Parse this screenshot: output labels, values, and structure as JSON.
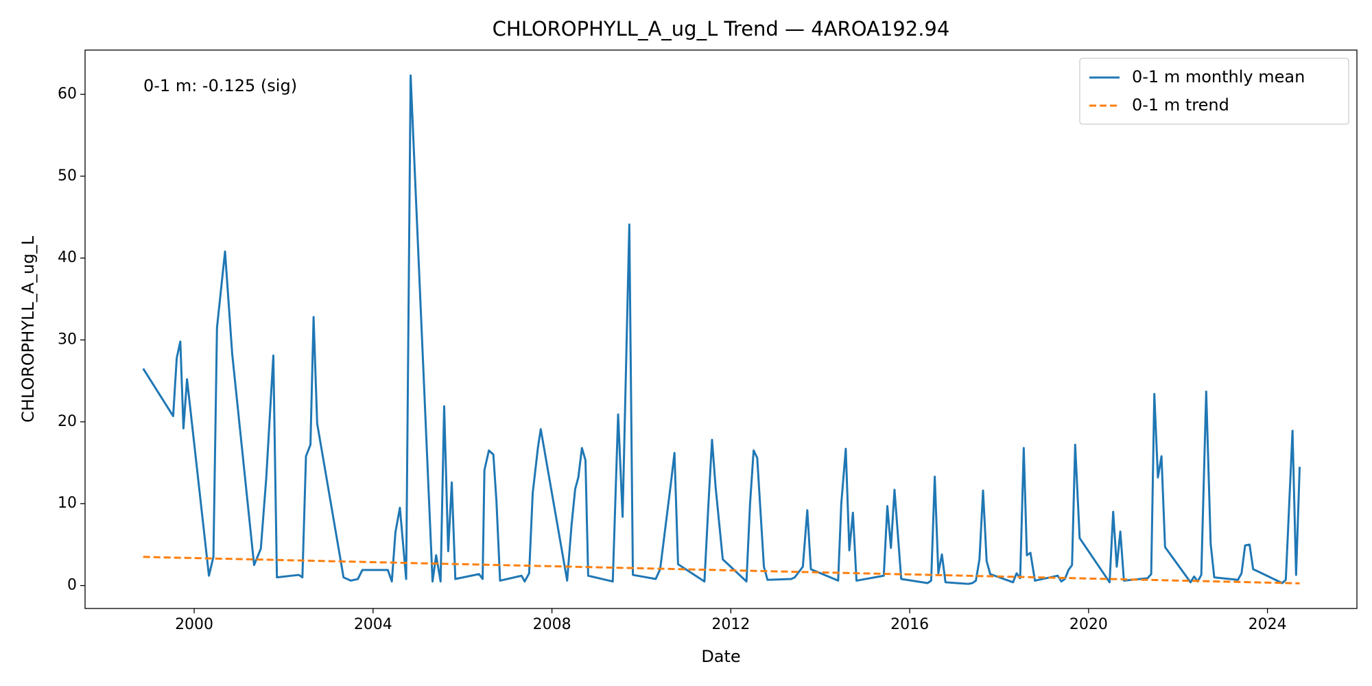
{
  "chart_data": {
    "type": "line",
    "title": "CHLOROPHYLL_A_ug_L Trend — 4AROA192.94",
    "x_label": "Date",
    "y_label": "CHLOROPHYLL_A_ug_L",
    "annotations": [
      "0-1 m: -0.125 (sig)"
    ],
    "xlim": [
      1997.56,
      2026.0
    ],
    "xticks": [
      2000,
      2004,
      2008,
      2012,
      2016,
      2020,
      2024
    ],
    "ylim": [
      -2.8,
      65.4
    ],
    "yticks": [
      0,
      10,
      20,
      30,
      40,
      50,
      60
    ],
    "grid": false,
    "legend": "upper right",
    "series": [
      {
        "name": "0-1 m monthly mean",
        "color": "#1f77b4",
        "linestyle": "solid",
        "x": [
          1998.86,
          1999.53,
          1999.61,
          1999.69,
          1999.76,
          1999.84,
          2000.33,
          2000.43,
          2000.51,
          2000.69,
          2000.85,
          2001.34,
          2001.49,
          2001.61,
          2001.77,
          2001.85,
          2002.34,
          2002.42,
          2002.5,
          2002.6,
          2002.67,
          2002.75,
          2003.34,
          2003.5,
          2003.66,
          2003.76,
          2004.33,
          2004.42,
          2004.5,
          2004.6,
          2004.74,
          2004.84,
          2005.33,
          2005.41,
          2005.51,
          2005.59,
          2005.68,
          2005.76,
          2005.84,
          2006.37,
          2006.45,
          2006.49,
          2006.59,
          2006.69,
          2006.76,
          2006.84,
          2007.32,
          2007.39,
          2007.49,
          2007.57,
          2007.69,
          2007.75,
          2008.34,
          2008.44,
          2008.52,
          2008.59,
          2008.67,
          2008.75,
          2008.81,
          2009.36,
          2009.48,
          2009.58,
          2009.73,
          2009.81,
          2010.32,
          2010.42,
          2010.66,
          2010.74,
          2010.82,
          2011.41,
          2011.5,
          2011.58,
          2011.66,
          2011.82,
          2012.35,
          2012.43,
          2012.51,
          2012.59,
          2012.74,
          2012.82,
          2013.35,
          2013.43,
          2013.61,
          2013.71,
          2013.79,
          2014.4,
          2014.47,
          2014.57,
          2014.65,
          2014.73,
          2014.81,
          2015.42,
          2015.5,
          2015.58,
          2015.66,
          2015.81,
          2016.4,
          2016.48,
          2016.56,
          2016.64,
          2016.72,
          2016.8,
          2017.31,
          2017.4,
          2017.48,
          2017.56,
          2017.64,
          2017.72,
          2017.8,
          2018.31,
          2018.39,
          2018.47,
          2018.55,
          2018.62,
          2018.7,
          2018.8,
          2019.31,
          2019.39,
          2019.47,
          2019.55,
          2019.63,
          2019.7,
          2019.8,
          2020.47,
          2020.55,
          2020.63,
          2020.71,
          2020.79,
          2021.32,
          2021.4,
          2021.47,
          2021.55,
          2021.63,
          2021.71,
          2022.28,
          2022.36,
          2022.44,
          2022.52,
          2022.63,
          2022.73,
          2022.81,
          2023.34,
          2023.42,
          2023.5,
          2023.6,
          2023.68,
          2023.76,
          2024.33,
          2024.41,
          2024.56,
          2024.64,
          2024.72
        ],
        "values": [
          26.5,
          20.7,
          27.8,
          29.8,
          19.2,
          25.2,
          1.2,
          3.5,
          31.5,
          40.8,
          28.3,
          2.5,
          4.5,
          13,
          28.1,
          1.0,
          1.3,
          1.0,
          15.8,
          17.2,
          32.8,
          19.8,
          1.0,
          0.6,
          0.8,
          1.9,
          1.9,
          0.5,
          6.5,
          9.5,
          0.8,
          62.3,
          0.5,
          3.7,
          0.5,
          21.9,
          4.2,
          12.6,
          0.8,
          1.4,
          0.8,
          14.1,
          16.5,
          16.0,
          10.2,
          0.6,
          1.2,
          0.5,
          1.5,
          11.3,
          17.0,
          19.1,
          0.6,
          7.5,
          11.8,
          13.2,
          16.8,
          15.3,
          1.2,
          0.5,
          20.9,
          8.4,
          44.1,
          1.3,
          0.8,
          2.0,
          12.5,
          16.2,
          2.6,
          0.5,
          10.0,
          17.8,
          12.0,
          3.2,
          0.5,
          10.0,
          16.5,
          15.6,
          2.3,
          0.7,
          0.8,
          1.0,
          2.3,
          9.2,
          2.0,
          0.6,
          10,
          16.7,
          4.3,
          8.9,
          0.6,
          1.2,
          9.7,
          4.6,
          11.7,
          0.8,
          0.3,
          0.6,
          13.3,
          1.5,
          3.8,
          0.4,
          0.2,
          0.3,
          0.6,
          3.2,
          11.6,
          3.0,
          1.4,
          0.4,
          1.5,
          0.9,
          16.8,
          3.7,
          4.0,
          0.6,
          1.2,
          0.5,
          0.8,
          1.9,
          2.5,
          17.2,
          5.8,
          0.4,
          9.0,
          2.3,
          6.6,
          0.6,
          0.9,
          1.4,
          23.4,
          13.2,
          15.8,
          4.7,
          0.4,
          1.1,
          0.5,
          1.3,
          23.7,
          5.1,
          1.0,
          0.7,
          1.5,
          4.9,
          5.0,
          2.0,
          1.8,
          0.3,
          0.7,
          18.9,
          1.3,
          14.5
        ]
      },
      {
        "name": "0-1 m trend",
        "color": "#ff7f0e",
        "linestyle": "dashed",
        "x": [
          1998.86,
          2024.72
        ],
        "values": [
          3.5,
          0.27
        ]
      }
    ]
  }
}
